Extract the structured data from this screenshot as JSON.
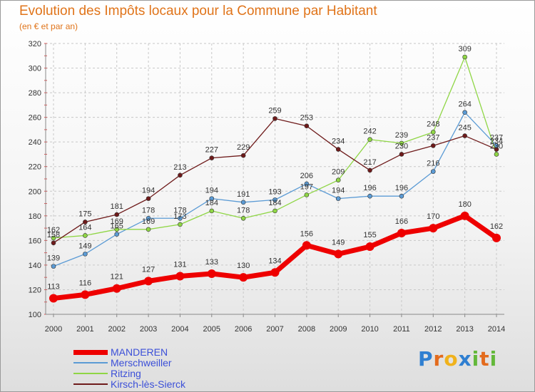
{
  "chart_data": {
    "type": "line",
    "title": "Evolution des Impôts locaux pour la Commune par Habitant",
    "subtitle": "(en € et par an)",
    "xlabel": "",
    "ylabel": "",
    "ylim": [
      100,
      320
    ],
    "yticks": [
      100,
      120,
      140,
      160,
      180,
      200,
      220,
      240,
      260,
      280,
      300,
      320
    ],
    "categories": [
      "2000",
      "2001",
      "2002",
      "2003",
      "2004",
      "2005",
      "2006",
      "2007",
      "2008",
      "2009",
      "2010",
      "2011",
      "2012",
      "2013",
      "2014"
    ],
    "grid": "dashed, horizontal and vertical",
    "legend_position": "bottom-left",
    "series": [
      {
        "name": "MANDEREN",
        "color": "#ee0000",
        "emphasis": true,
        "values": [
          113,
          116,
          121,
          127,
          131,
          133,
          130,
          134,
          156,
          149,
          155,
          166,
          170,
          180,
          162
        ]
      },
      {
        "name": "Merschweiller",
        "color": "#5b9bd5",
        "values": [
          139,
          149,
          165,
          178,
          178,
          194,
          191,
          193,
          206,
          194,
          196,
          196,
          216,
          264,
          237
        ]
      },
      {
        "name": "Ritzing",
        "color": "#8fd645",
        "values": [
          162,
          164,
          169,
          169,
          173,
          184,
          178,
          184,
          197,
          209,
          242,
          239,
          248,
          309,
          230
        ]
      },
      {
        "name": "Kirsch-lès-Sierck",
        "color": "#6e1a1a",
        "values": [
          158,
          175,
          181,
          194,
          213,
          227,
          229,
          259,
          253,
          234,
          217,
          230,
          237,
          245,
          234
        ]
      }
    ]
  },
  "logo": {
    "letters": [
      "P",
      "r",
      "o",
      "x",
      "i",
      "t",
      "i"
    ],
    "colors": [
      "#2f7fd1",
      "#e36b1d",
      "#f0b21c",
      "#2f7fd1",
      "#63b83a",
      "#e36b1d",
      "#63b83a"
    ]
  }
}
